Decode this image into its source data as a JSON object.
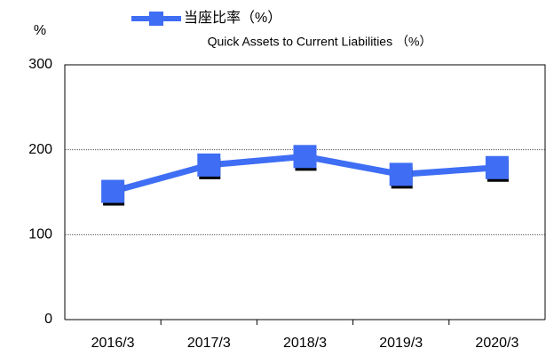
{
  "chart_data": {
    "type": "line",
    "y_axis_label": "%",
    "legend_subtitle": "Quick Assets to Current Liabilities （%）",
    "categories": [
      "2016/3",
      "2017/3",
      "2018/3",
      "2019/3",
      "2020/3"
    ],
    "series": [
      {
        "name": "当座比率（%）",
        "color": "#3f6ef5",
        "values": [
          151,
          182,
          192,
          171,
          179
        ]
      }
    ],
    "ylim": [
      0,
      300
    ],
    "yticks": [
      0,
      100,
      200,
      300
    ],
    "grid": true
  }
}
